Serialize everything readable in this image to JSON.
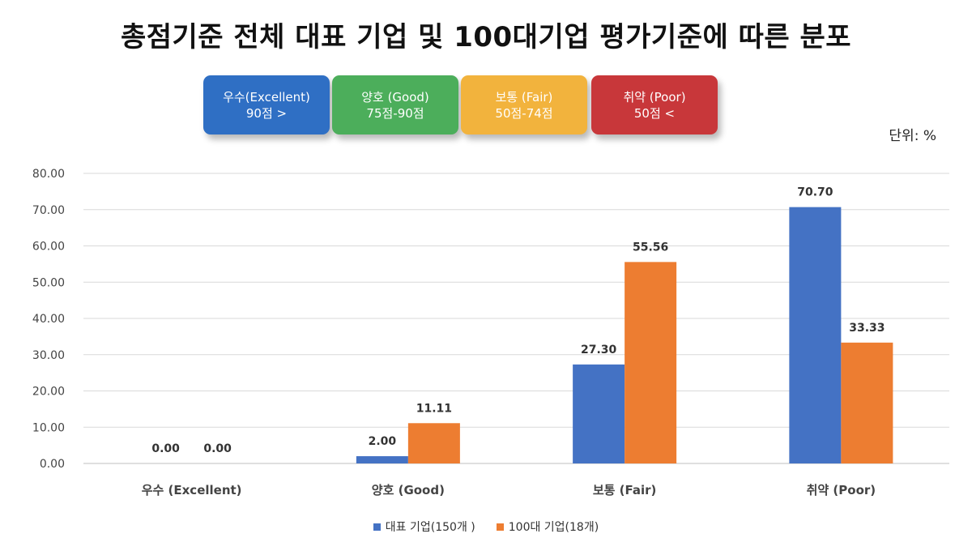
{
  "title": "총점기준 전체 대표 기업 및 100대기업 평가기준에 따른 분포",
  "unit_label": "단위: %",
  "badges": [
    {
      "label": "우수(Excellent)",
      "range": "90점 >",
      "color": "#2f6fc4"
    },
    {
      "label": "양호 (Good)",
      "range": "75점-90점",
      "color": "#4cae5b"
    },
    {
      "label": "보통 (Fair)",
      "range": "50점-74점",
      "color": "#f2b33d"
    },
    {
      "label": "취약 (Poor)",
      "range": "50점 <",
      "color": "#c8373a"
    }
  ],
  "chart_data": {
    "type": "bar",
    "title": "",
    "xlabel": "",
    "ylabel": "",
    "categories": [
      "우수 (Excellent)",
      "양호 (Good)",
      "보통 (Fair)",
      "취약 (Poor)"
    ],
    "series": [
      {
        "name": "대표 기업(150개 )",
        "values": [
          0.0,
          2.0,
          27.3,
          70.7
        ],
        "labels": [
          "0.00",
          "2.00",
          "27.30",
          "70.70"
        ],
        "color": "#4472c4"
      },
      {
        "name": "100대 기업(18개)",
        "values": [
          0.0,
          11.11,
          55.56,
          33.33
        ],
        "labels": [
          "0.00",
          "11.11",
          "55.56",
          "33.33"
        ],
        "color": "#ed7d31"
      }
    ],
    "ylim": [
      0,
      80
    ],
    "yticks": [
      "0.00",
      "10.00",
      "20.00",
      "30.00",
      "40.00",
      "50.00",
      "60.00",
      "70.00",
      "80.00"
    ],
    "grid": true,
    "legend_position": "bottom"
  }
}
